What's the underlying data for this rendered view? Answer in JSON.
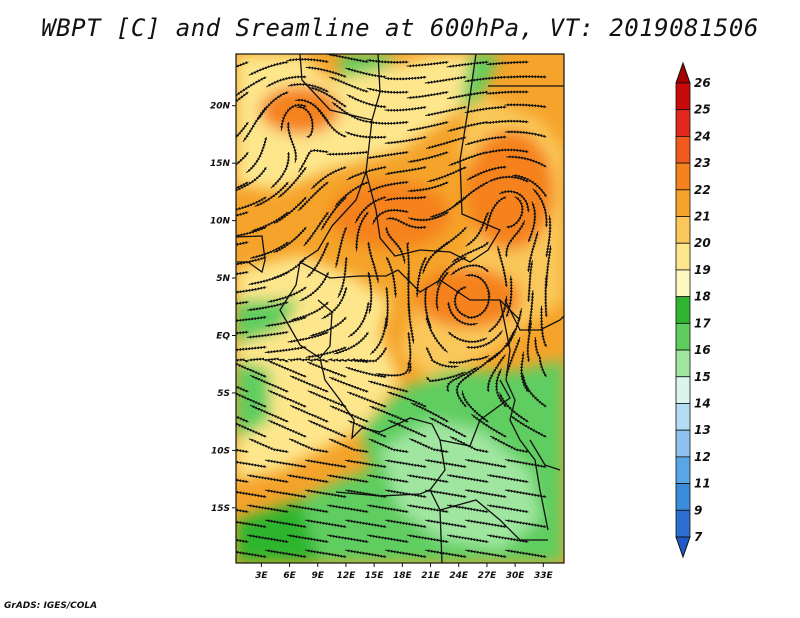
{
  "title": "WBPT [C] and Sreamline at 600hPa, VT: 2019081506",
  "credit": "GrADS: IGES/COLA",
  "map": {
    "lat_labels": [
      "20N",
      "15N",
      "10N",
      "5N",
      "EQ",
      "5S",
      "10S",
      "15S"
    ],
    "lat_values": [
      20,
      15,
      10,
      5,
      0,
      -5,
      -10,
      -15
    ],
    "lon_labels": [
      "3E",
      "6E",
      "9E",
      "12E",
      "15E",
      "18E",
      "21E",
      "24E",
      "27E",
      "30E",
      "33E"
    ],
    "lon_values": [
      3,
      6,
      9,
      12,
      15,
      18,
      21,
      24,
      27,
      30,
      33
    ],
    "lon_range": [
      0.3,
      35.2
    ],
    "lat_range": [
      -19.8,
      24.5
    ]
  },
  "colorbar": {
    "labels": [
      "26",
      "25",
      "24",
      "23",
      "22",
      "21",
      "20",
      "19",
      "18",
      "17",
      "16",
      "15",
      "14",
      "13",
      "12",
      "11",
      "9",
      "7"
    ],
    "colors": [
      "#a50000",
      "#c80a0a",
      "#e1281e",
      "#f05a1e",
      "#f5821e",
      "#f5a32a",
      "#fac85a",
      "#fde68c",
      "#fff8c0",
      "#2fb52f",
      "#5ecd5e",
      "#a0e6a0",
      "#dcf5ec",
      "#b4dcf5",
      "#8ec2f0",
      "#5aa5e6",
      "#3c8cdc",
      "#2d6ed2",
      "#1e5ac8"
    ]
  },
  "colors": {
    "warm": "#f5a32a",
    "hot": "#f5821e",
    "pale": "#fde68c",
    "green": "#5ecd5e",
    "dark_green": "#2fb52f",
    "light_green": "#a0e6a0"
  }
}
